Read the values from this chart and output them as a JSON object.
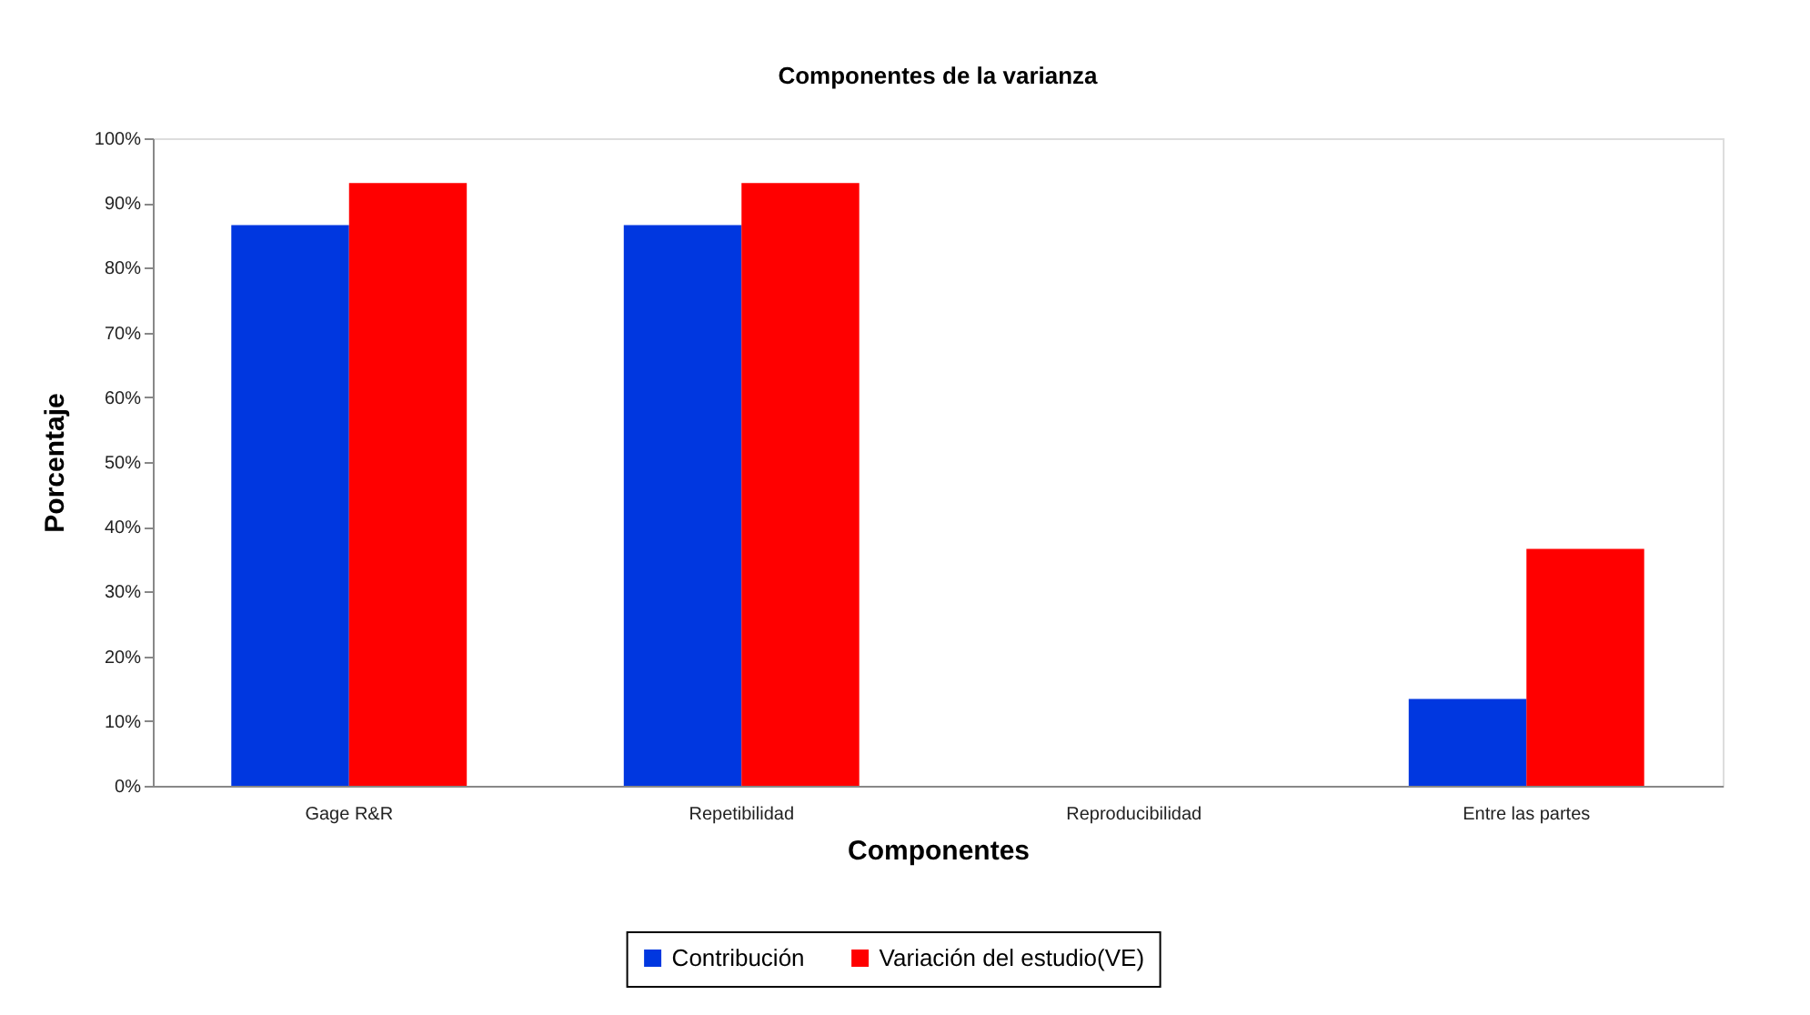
{
  "chart_data": {
    "type": "bar",
    "title": "Componentes de la varianza",
    "xlabel": "Componentes",
    "ylabel": "Porcentaje",
    "categories": [
      "Gage R&R",
      "Repetibilidad",
      "Reproducibilidad",
      "Entre las partes"
    ],
    "series": [
      {
        "name": "Contribución",
        "color": "#0037e0",
        "values": [
          86.6,
          86.6,
          0,
          13.4
        ]
      },
      {
        "name": "Variación del estudio(VE)",
        "color": "#ff0000",
        "values": [
          93.1,
          93.1,
          0,
          36.6
        ]
      }
    ],
    "ylim": [
      0,
      100
    ],
    "yticks": [
      {
        "value": 0,
        "label": "0%"
      },
      {
        "value": 10,
        "label": "10%"
      },
      {
        "value": 20,
        "label": "20%"
      },
      {
        "value": 30,
        "label": "30%"
      },
      {
        "value": 40,
        "label": "40%"
      },
      {
        "value": 50,
        "label": "50%"
      },
      {
        "value": 60,
        "label": "60%"
      },
      {
        "value": 70,
        "label": "70%"
      },
      {
        "value": 80,
        "label": "80%"
      },
      {
        "value": 90,
        "label": "90%"
      },
      {
        "value": 100,
        "label": "100%"
      }
    ],
    "legend": "bottom"
  }
}
